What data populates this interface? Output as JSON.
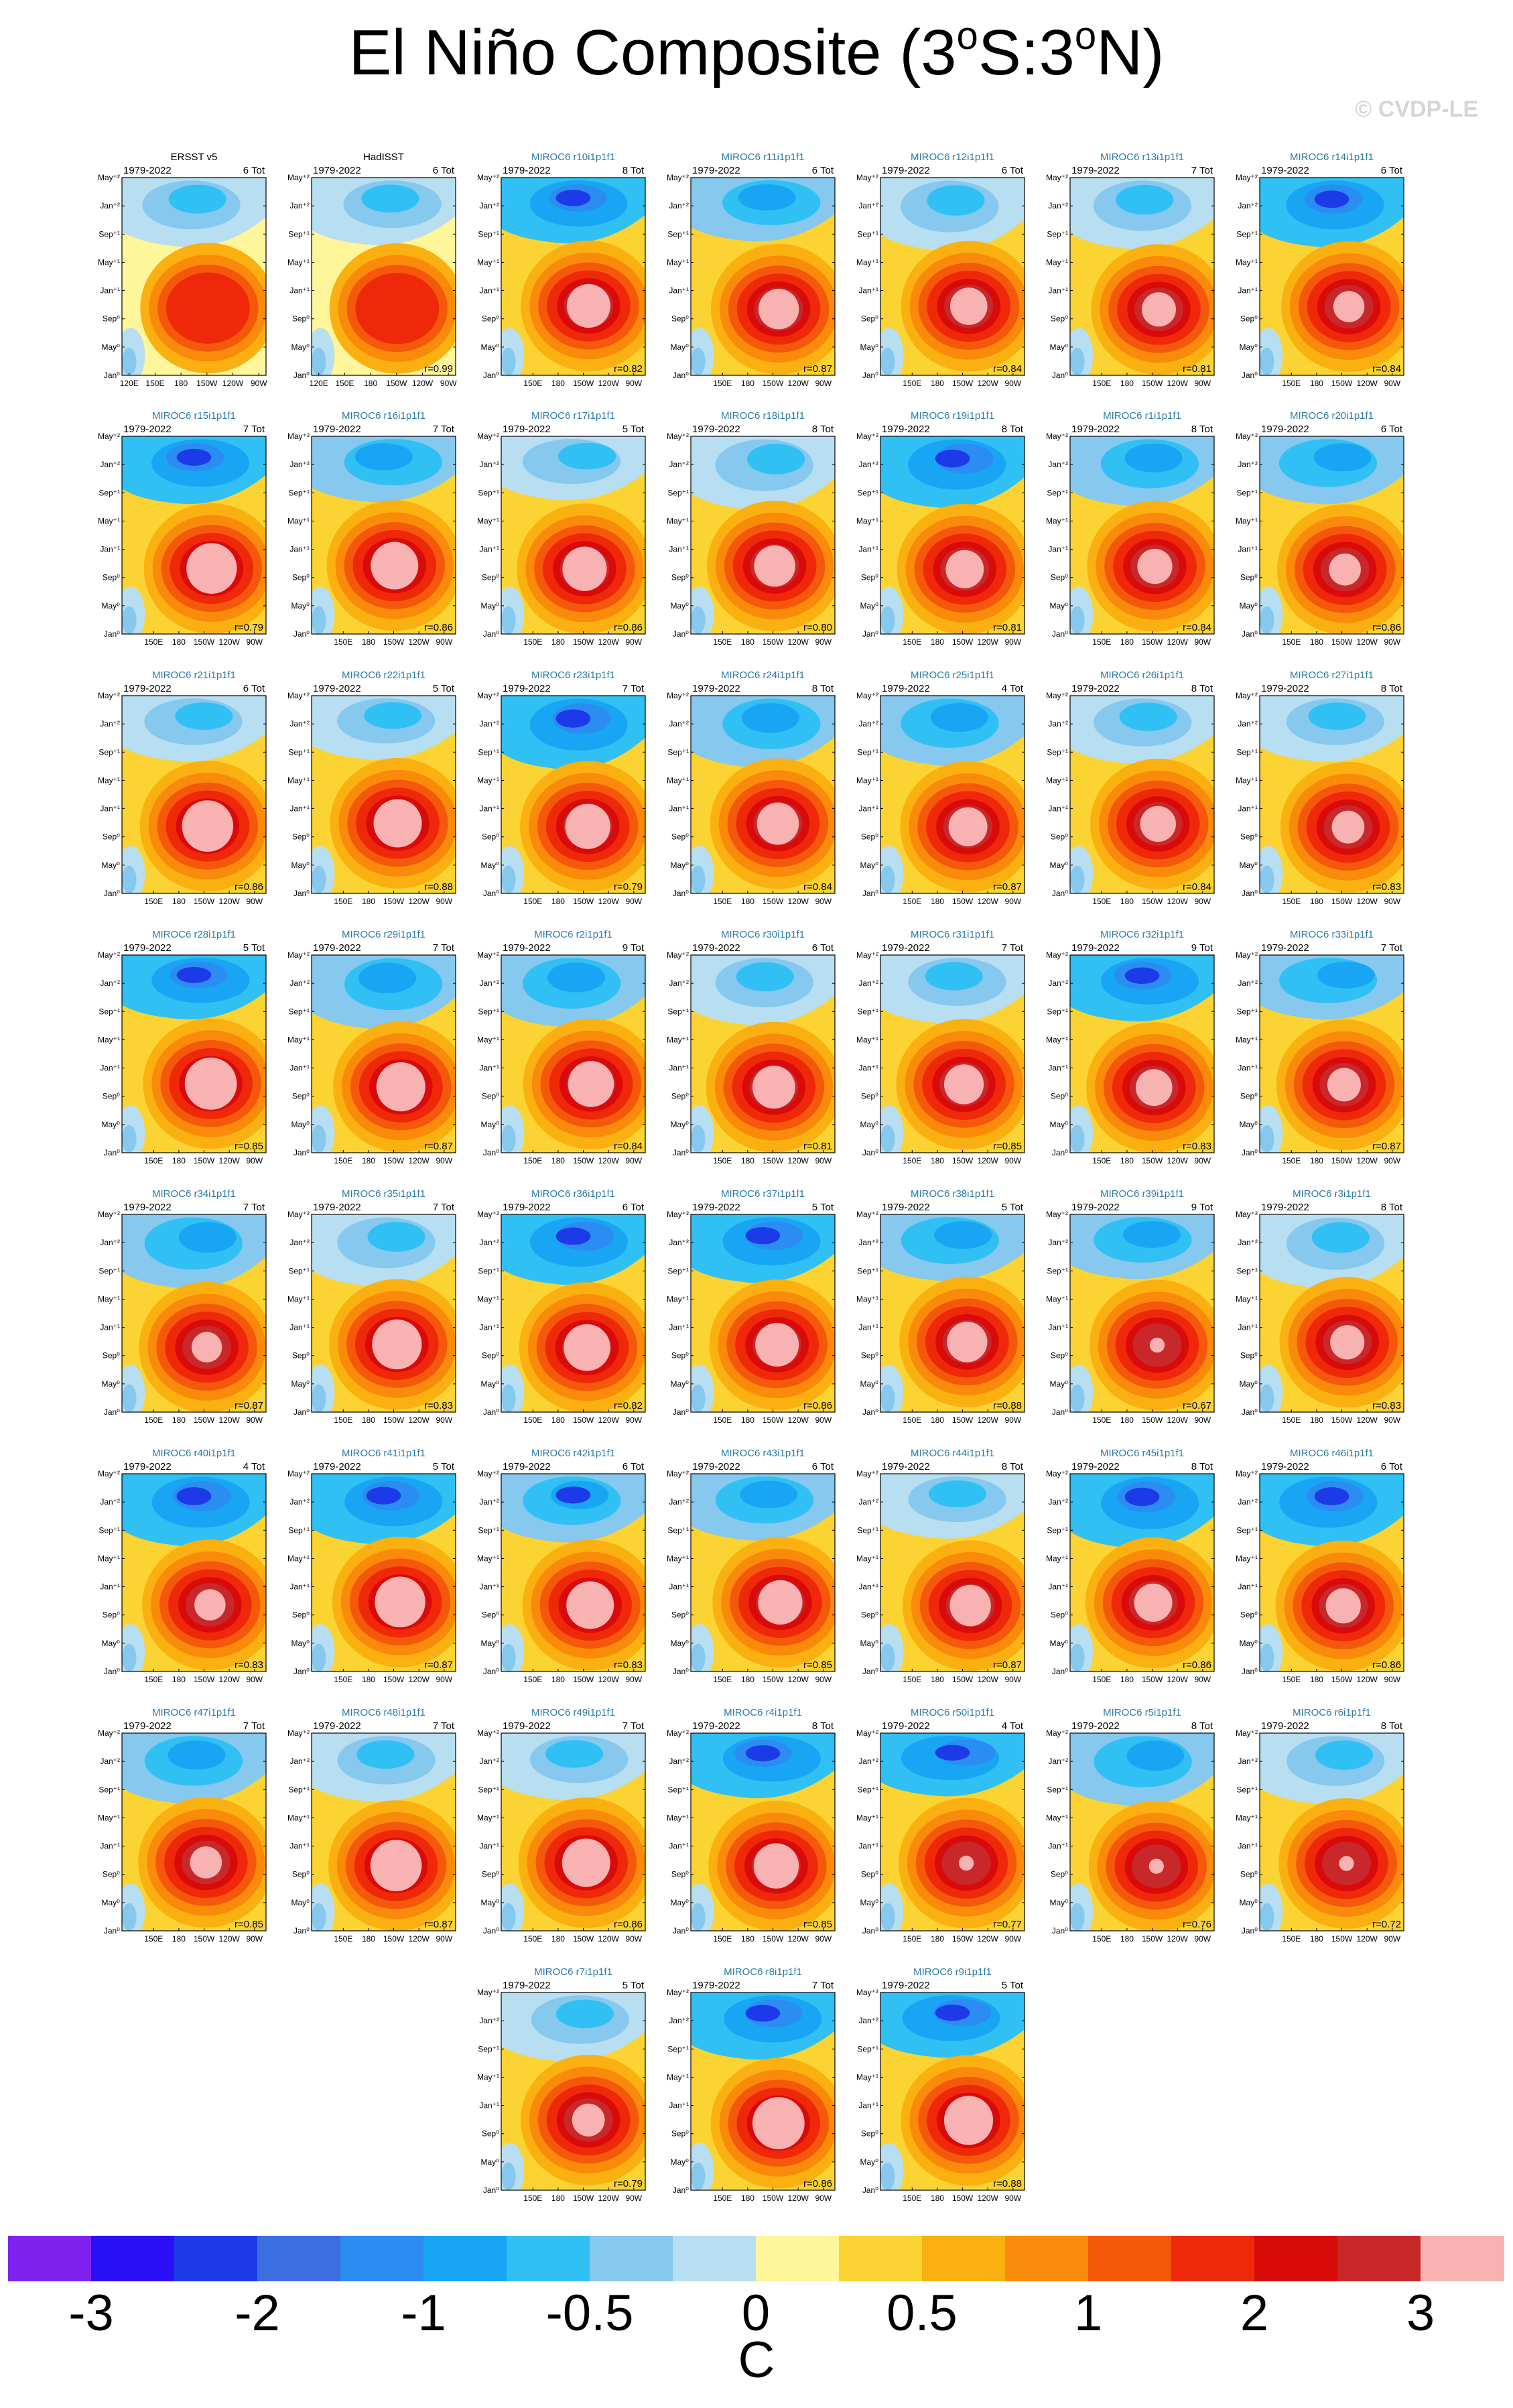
{
  "title": {
    "pre": "El Niño Composite (3",
    "s1": "o",
    "mid": "S:3",
    "s2": "o",
    "post": "N)"
  },
  "watermark": "© CVDP-LE",
  "units": "C",
  "colorbar": {
    "colors": [
      "#7f22f0",
      "#2a0ef6",
      "#1d3ae8",
      "#3c6ee0",
      "#2b8cf2",
      "#18a6f4",
      "#30c0f4",
      "#86c8ee",
      "#b8def2",
      "#fff59a",
      "#fbd332",
      "#f9b010",
      "#f98a0a",
      "#f5580a",
      "#f0280a",
      "#d80a0a",
      "#c8282a",
      "#f9b2b2"
    ],
    "labels": [
      "-3",
      "-2",
      "-1",
      "-0.5",
      "0",
      "0.5",
      "1",
      "2",
      "3"
    ]
  },
  "common": {
    "years": "1979-2022",
    "y_ticks": [
      "May⁺²",
      "Jan⁺²",
      "Sep⁺¹",
      "May⁺¹",
      "Jan⁺¹",
      "Sep⁰",
      "May⁰",
      "Jan⁰"
    ],
    "x_ticks": [
      "150E",
      "180",
      "150W",
      "120W",
      "90W"
    ],
    "x_ticks_first": [
      "120E",
      "150E",
      "180",
      "150W",
      "120W",
      "90W"
    ]
  },
  "chart_data": {
    "type": "heatmap",
    "description_axes": "Hovmöller diagrams: longitude (x) vs. lag time (y), SST anomaly composite",
    "panels": [
      {
        "name": "ERSST v5",
        "count": "6 Tot",
        "r": "",
        "obs": true
      },
      {
        "name": "HadISST",
        "count": "6 Tot",
        "r": "r=0.99",
        "obs": true
      },
      {
        "name": "MIROC6 r10i1p1f1",
        "count": "8 Tot",
        "r": "r=0.82"
      },
      {
        "name": "MIROC6 r11i1p1f1",
        "count": "6 Tot",
        "r": "r=0.87"
      },
      {
        "name": "MIROC6 r12i1p1f1",
        "count": "6 Tot",
        "r": "r=0.84"
      },
      {
        "name": "MIROC6 r13i1p1f1",
        "count": "7 Tot",
        "r": "r=0.81"
      },
      {
        "name": "MIROC6 r14i1p1f1",
        "count": "6 Tot",
        "r": "r=0.84"
      },
      {
        "name": "MIROC6 r15i1p1f1",
        "count": "7 Tot",
        "r": "r=0.79"
      },
      {
        "name": "MIROC6 r16i1p1f1",
        "count": "7 Tot",
        "r": "r=0.86"
      },
      {
        "name": "MIROC6 r17i1p1f1",
        "count": "5 Tot",
        "r": "r=0.86"
      },
      {
        "name": "MIROC6 r18i1p1f1",
        "count": "8 Tot",
        "r": "r=0.80"
      },
      {
        "name": "MIROC6 r19i1p1f1",
        "count": "8 Tot",
        "r": "r=0.81"
      },
      {
        "name": "MIROC6 r1i1p1f1",
        "count": "8 Tot",
        "r": "r=0.84"
      },
      {
        "name": "MIROC6 r20i1p1f1",
        "count": "6 Tot",
        "r": "r=0.86"
      },
      {
        "name": "MIROC6 r21i1p1f1",
        "count": "6 Tot",
        "r": "r=0.86"
      },
      {
        "name": "MIROC6 r22i1p1f1",
        "count": "5 Tot",
        "r": "r=0.88"
      },
      {
        "name": "MIROC6 r23i1p1f1",
        "count": "7 Tot",
        "r": "r=0.79"
      },
      {
        "name": "MIROC6 r24i1p1f1",
        "count": "8 Tot",
        "r": "r=0.84"
      },
      {
        "name": "MIROC6 r25i1p1f1",
        "count": "4 Tot",
        "r": "r=0.87"
      },
      {
        "name": "MIROC6 r26i1p1f1",
        "count": "8 Tot",
        "r": "r=0.84"
      },
      {
        "name": "MIROC6 r27i1p1f1",
        "count": "8 Tot",
        "r": "r=0.83"
      },
      {
        "name": "MIROC6 r28i1p1f1",
        "count": "5 Tot",
        "r": "r=0.85"
      },
      {
        "name": "MIROC6 r29i1p1f1",
        "count": "7 Tot",
        "r": "r=0.87"
      },
      {
        "name": "MIROC6 r2i1p1f1",
        "count": "9 Tot",
        "r": "r=0.84"
      },
      {
        "name": "MIROC6 r30i1p1f1",
        "count": "6 Tot",
        "r": "r=0.81"
      },
      {
        "name": "MIROC6 r31i1p1f1",
        "count": "7 Tot",
        "r": "r=0.85"
      },
      {
        "name": "MIROC6 r32i1p1f1",
        "count": "9 Tot",
        "r": "r=0.83"
      },
      {
        "name": "MIROC6 r33i1p1f1",
        "count": "7 Tot",
        "r": "r=0.87"
      },
      {
        "name": "MIROC6 r34i1p1f1",
        "count": "7 Tot",
        "r": "r=0.87"
      },
      {
        "name": "MIROC6 r35i1p1f1",
        "count": "7 Tot",
        "r": "r=0.83"
      },
      {
        "name": "MIROC6 r36i1p1f1",
        "count": "6 Tot",
        "r": "r=0.82"
      },
      {
        "name": "MIROC6 r37i1p1f1",
        "count": "5 Tot",
        "r": "r=0.86"
      },
      {
        "name": "MIROC6 r38i1p1f1",
        "count": "5 Tot",
        "r": "r=0.88"
      },
      {
        "name": "MIROC6 r39i1p1f1",
        "count": "9 Tot",
        "r": "r=0.67"
      },
      {
        "name": "MIROC6 r3i1p1f1",
        "count": "8 Tot",
        "r": "r=0.83"
      },
      {
        "name": "MIROC6 r40i1p1f1",
        "count": "4 Tot",
        "r": "r=0.83"
      },
      {
        "name": "MIROC6 r41i1p1f1",
        "count": "5 Tot",
        "r": "r=0.87"
      },
      {
        "name": "MIROC6 r42i1p1f1",
        "count": "6 Tot",
        "r": "r=0.83"
      },
      {
        "name": "MIROC6 r43i1p1f1",
        "count": "6 Tot",
        "r": "r=0.85"
      },
      {
        "name": "MIROC6 r44i1p1f1",
        "count": "8 Tot",
        "r": "r=0.87"
      },
      {
        "name": "MIROC6 r45i1p1f1",
        "count": "8 Tot",
        "r": "r=0.86"
      },
      {
        "name": "MIROC6 r46i1p1f1",
        "count": "6 Tot",
        "r": "r=0.86"
      },
      {
        "name": "MIROC6 r47i1p1f1",
        "count": "7 Tot",
        "r": "r=0.85"
      },
      {
        "name": "MIROC6 r48i1p1f1",
        "count": "7 Tot",
        "r": "r=0.87"
      },
      {
        "name": "MIROC6 r49i1p1f1",
        "count": "7 Tot",
        "r": "r=0.86"
      },
      {
        "name": "MIROC6 r4i1p1f1",
        "count": "8 Tot",
        "r": "r=0.85"
      },
      {
        "name": "MIROC6 r50i1p1f1",
        "count": "4 Tot",
        "r": "r=0.77"
      },
      {
        "name": "MIROC6 r5i1p1f1",
        "count": "8 Tot",
        "r": "r=0.76"
      },
      {
        "name": "MIROC6 r6i1p1f1",
        "count": "8 Tot",
        "r": "r=0.72"
      },
      {
        "name": "MIROC6 r7i1p1f1",
        "count": "5 Tot",
        "r": "r=0.79"
      },
      {
        "name": "MIROC6 r8i1p1f1",
        "count": "7 Tot",
        "r": "r=0.86"
      },
      {
        "name": "MIROC6 r9i1p1f1",
        "count": "5 Tot",
        "r": "r=0.88"
      }
    ]
  }
}
